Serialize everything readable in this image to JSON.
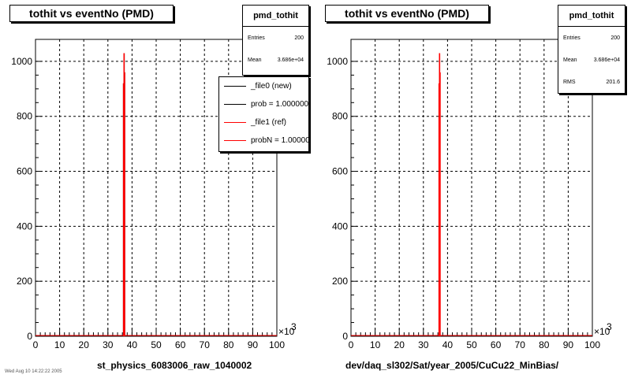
{
  "colors": {
    "new": "#000000",
    "ref": "#ff0000",
    "grid": "#000000"
  },
  "left": {
    "title": "tothit vs eventNo (PMD)",
    "stats": {
      "name": "pmd_tothit",
      "rows": [
        {
          "label": "Entries",
          "value": "200"
        },
        {
          "label": "Mean",
          "value": "3.686e+04"
        }
      ]
    },
    "legend": [
      {
        "label": "_file0 (new)",
        "color": "#000000"
      },
      {
        "label": "prob = 1.000000",
        "color": "#000000"
      },
      {
        "label": "_file1 (ref)",
        "color": "#ff0000"
      },
      {
        "label": "probN = 1.000000",
        "color": "#ff0000"
      }
    ],
    "xtitle": "st_physics_6083006_raw_1040002",
    "exponent": "×10",
    "exponent_power": "3"
  },
  "right": {
    "title": "tothit vs eventNo (PMD)",
    "stats": {
      "name": "pmd_tothit",
      "rows": [
        {
          "label": "Entries",
          "value": "200"
        },
        {
          "label": "Mean",
          "value": "3.686e+04"
        },
        {
          "label": "RMS",
          "value": "201.6"
        }
      ]
    },
    "xtitle": "dev/daq_sl302/Sat/year_2005/CuCu22_MinBias/",
    "exponent": "×10",
    "exponent_power": "3"
  },
  "footer": "Wed Aug 10 14:22:22 2005",
  "chart_data": [
    {
      "type": "bar",
      "title": "tothit vs eventNo (PMD)",
      "xlabel": "st_physics_6083006_raw_1040002",
      "ylabel": "",
      "xlim": [
        0,
        100
      ],
      "ylim": [
        0,
        1080
      ],
      "x_multiplier": "×10^3",
      "xticks": [
        0,
        10,
        20,
        30,
        40,
        50,
        60,
        70,
        80,
        90,
        100
      ],
      "yticks": [
        0,
        200,
        400,
        600,
        800,
        1000
      ],
      "grid": true,
      "legend_position": "top-right",
      "series": [
        {
          "name": "_file0 (new)",
          "color": "#000000",
          "x": [
            36.5,
            36.7,
            36.9
          ],
          "values": [
            920,
            1030,
            960
          ]
        },
        {
          "name": "_file1 (ref)",
          "color": "#ff0000",
          "x": [
            36.5,
            36.7,
            36.9
          ],
          "values": [
            920,
            1030,
            960
          ]
        }
      ]
    },
    {
      "type": "bar",
      "title": "tothit vs eventNo (PMD)",
      "xlabel": "dev/daq_sl302/Sat/year_2005/CuCu22_MinBias/",
      "ylabel": "",
      "xlim": [
        0,
        100
      ],
      "ylim": [
        0,
        1080
      ],
      "x_multiplier": "×10^3",
      "xticks": [
        0,
        10,
        20,
        30,
        40,
        50,
        60,
        70,
        80,
        90,
        100
      ],
      "yticks": [
        0,
        200,
        400,
        600,
        800,
        1000
      ],
      "grid": true,
      "series": [
        {
          "name": "pmd_tothit",
          "color": "#ff0000",
          "x": [
            36.5,
            36.7,
            36.9
          ],
          "values": [
            920,
            1030,
            960
          ]
        }
      ]
    }
  ]
}
